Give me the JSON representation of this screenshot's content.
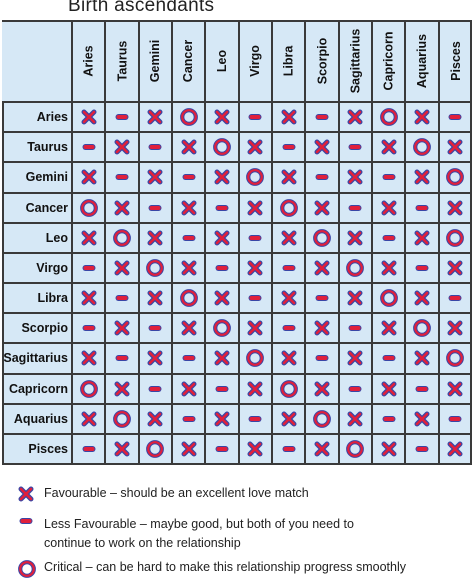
{
  "title": "Birth ascendants",
  "signs": [
    "Aries",
    "Taurus",
    "Gemini",
    "Cancer",
    "Leo",
    "Virgo",
    "Libra",
    "Scorpio",
    "Sagittarius",
    "Capricorn",
    "Aquarius",
    "Pisces"
  ],
  "grid": [
    [
      "x",
      "-",
      "x",
      "o",
      "x",
      "-",
      "x",
      "-",
      "x",
      "o",
      "x",
      "-"
    ],
    [
      "-",
      "x",
      "-",
      "x",
      "o",
      "x",
      "-",
      "x",
      "-",
      "x",
      "o",
      "x"
    ],
    [
      "x",
      "-",
      "x",
      "-",
      "x",
      "o",
      "x",
      "-",
      "x",
      "-",
      "x",
      "o"
    ],
    [
      "o",
      "x",
      "-",
      "x",
      "-",
      "x",
      "o",
      "x",
      "-",
      "x",
      "-",
      "x"
    ],
    [
      "x",
      "o",
      "x",
      "-",
      "x",
      "-",
      "x",
      "o",
      "x",
      "-",
      "x",
      "o"
    ],
    [
      "-",
      "x",
      "o",
      "x",
      "-",
      "x",
      "-",
      "x",
      "o",
      "x",
      "-",
      "x"
    ],
    [
      "x",
      "-",
      "x",
      "o",
      "x",
      "-",
      "x",
      "-",
      "x",
      "o",
      "x",
      "-"
    ],
    [
      "-",
      "x",
      "-",
      "x",
      "o",
      "x",
      "-",
      "x",
      "-",
      "x",
      "o",
      "x"
    ],
    [
      "x",
      "-",
      "x",
      "-",
      "x",
      "o",
      "x",
      "-",
      "x",
      "-",
      "x",
      "o"
    ],
    [
      "o",
      "x",
      "-",
      "x",
      "-",
      "x",
      "o",
      "x",
      "-",
      "x",
      "-",
      "x"
    ],
    [
      "x",
      "o",
      "x",
      "-",
      "x",
      "-",
      "x",
      "o",
      "x",
      "-",
      "x",
      "-"
    ],
    [
      "-",
      "x",
      "o",
      "x",
      "-",
      "x",
      "-",
      "x",
      "o",
      "x",
      "-",
      "x"
    ]
  ],
  "colors": {
    "grid_bg": "#d6e8f6",
    "symbol_red": "#e0203c",
    "symbol_blue": "#3a46a6"
  },
  "legend": {
    "favourable": {
      "icon": "x-mark-icon",
      "lines": [
        "Favourable – should be an excellent love match"
      ]
    },
    "less": {
      "icon": "dash-icon",
      "lines": [
        "Less Favourable – maybe good, but both of you need to",
        "continue to work on the relationship"
      ]
    },
    "critical": {
      "icon": "ring-icon",
      "lines": [
        "Critical – can be hard to make this relationship progress smoothly"
      ]
    }
  }
}
